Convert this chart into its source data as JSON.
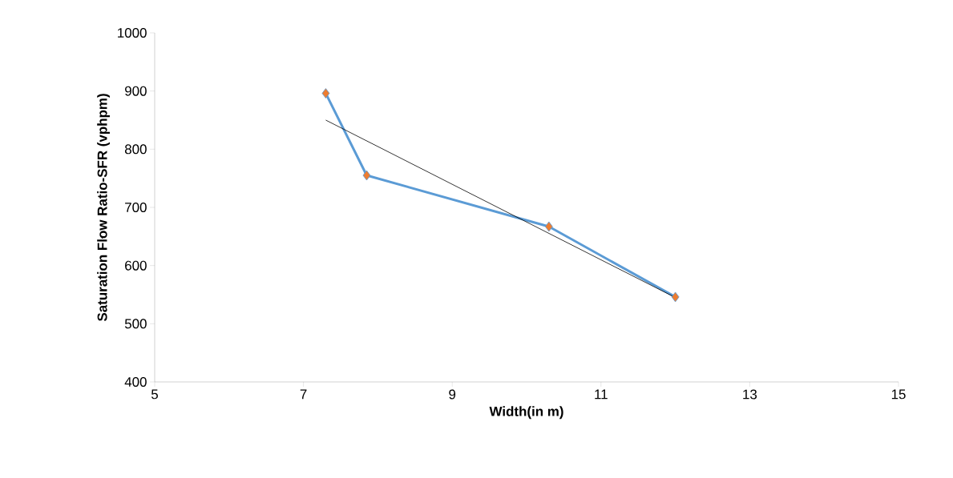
{
  "chart_data": {
    "type": "line",
    "xlabel": "Width(in m)",
    "ylabel": "Saturation Flow Ratio-SFR (vphpm)",
    "xlim": [
      5,
      15
    ],
    "xticks": [
      5,
      7,
      9,
      11,
      13,
      15
    ],
    "ylim": [
      400,
      1000
    ],
    "yticks": [
      400,
      500,
      600,
      700,
      800,
      900,
      1000
    ],
    "grid": false,
    "marker": "diamond",
    "series": [
      {
        "x": [
          7.3,
          7.85,
          10.3,
          12
        ],
        "values": [
          896,
          755,
          667,
          546
        ],
        "color": "#5b9bd5"
      },
      {
        "type": "line",
        "marker": "none",
        "x": [
          7.3,
          12
        ],
        "values": [
          850,
          545
        ],
        "color": "#000000"
      }
    ]
  }
}
